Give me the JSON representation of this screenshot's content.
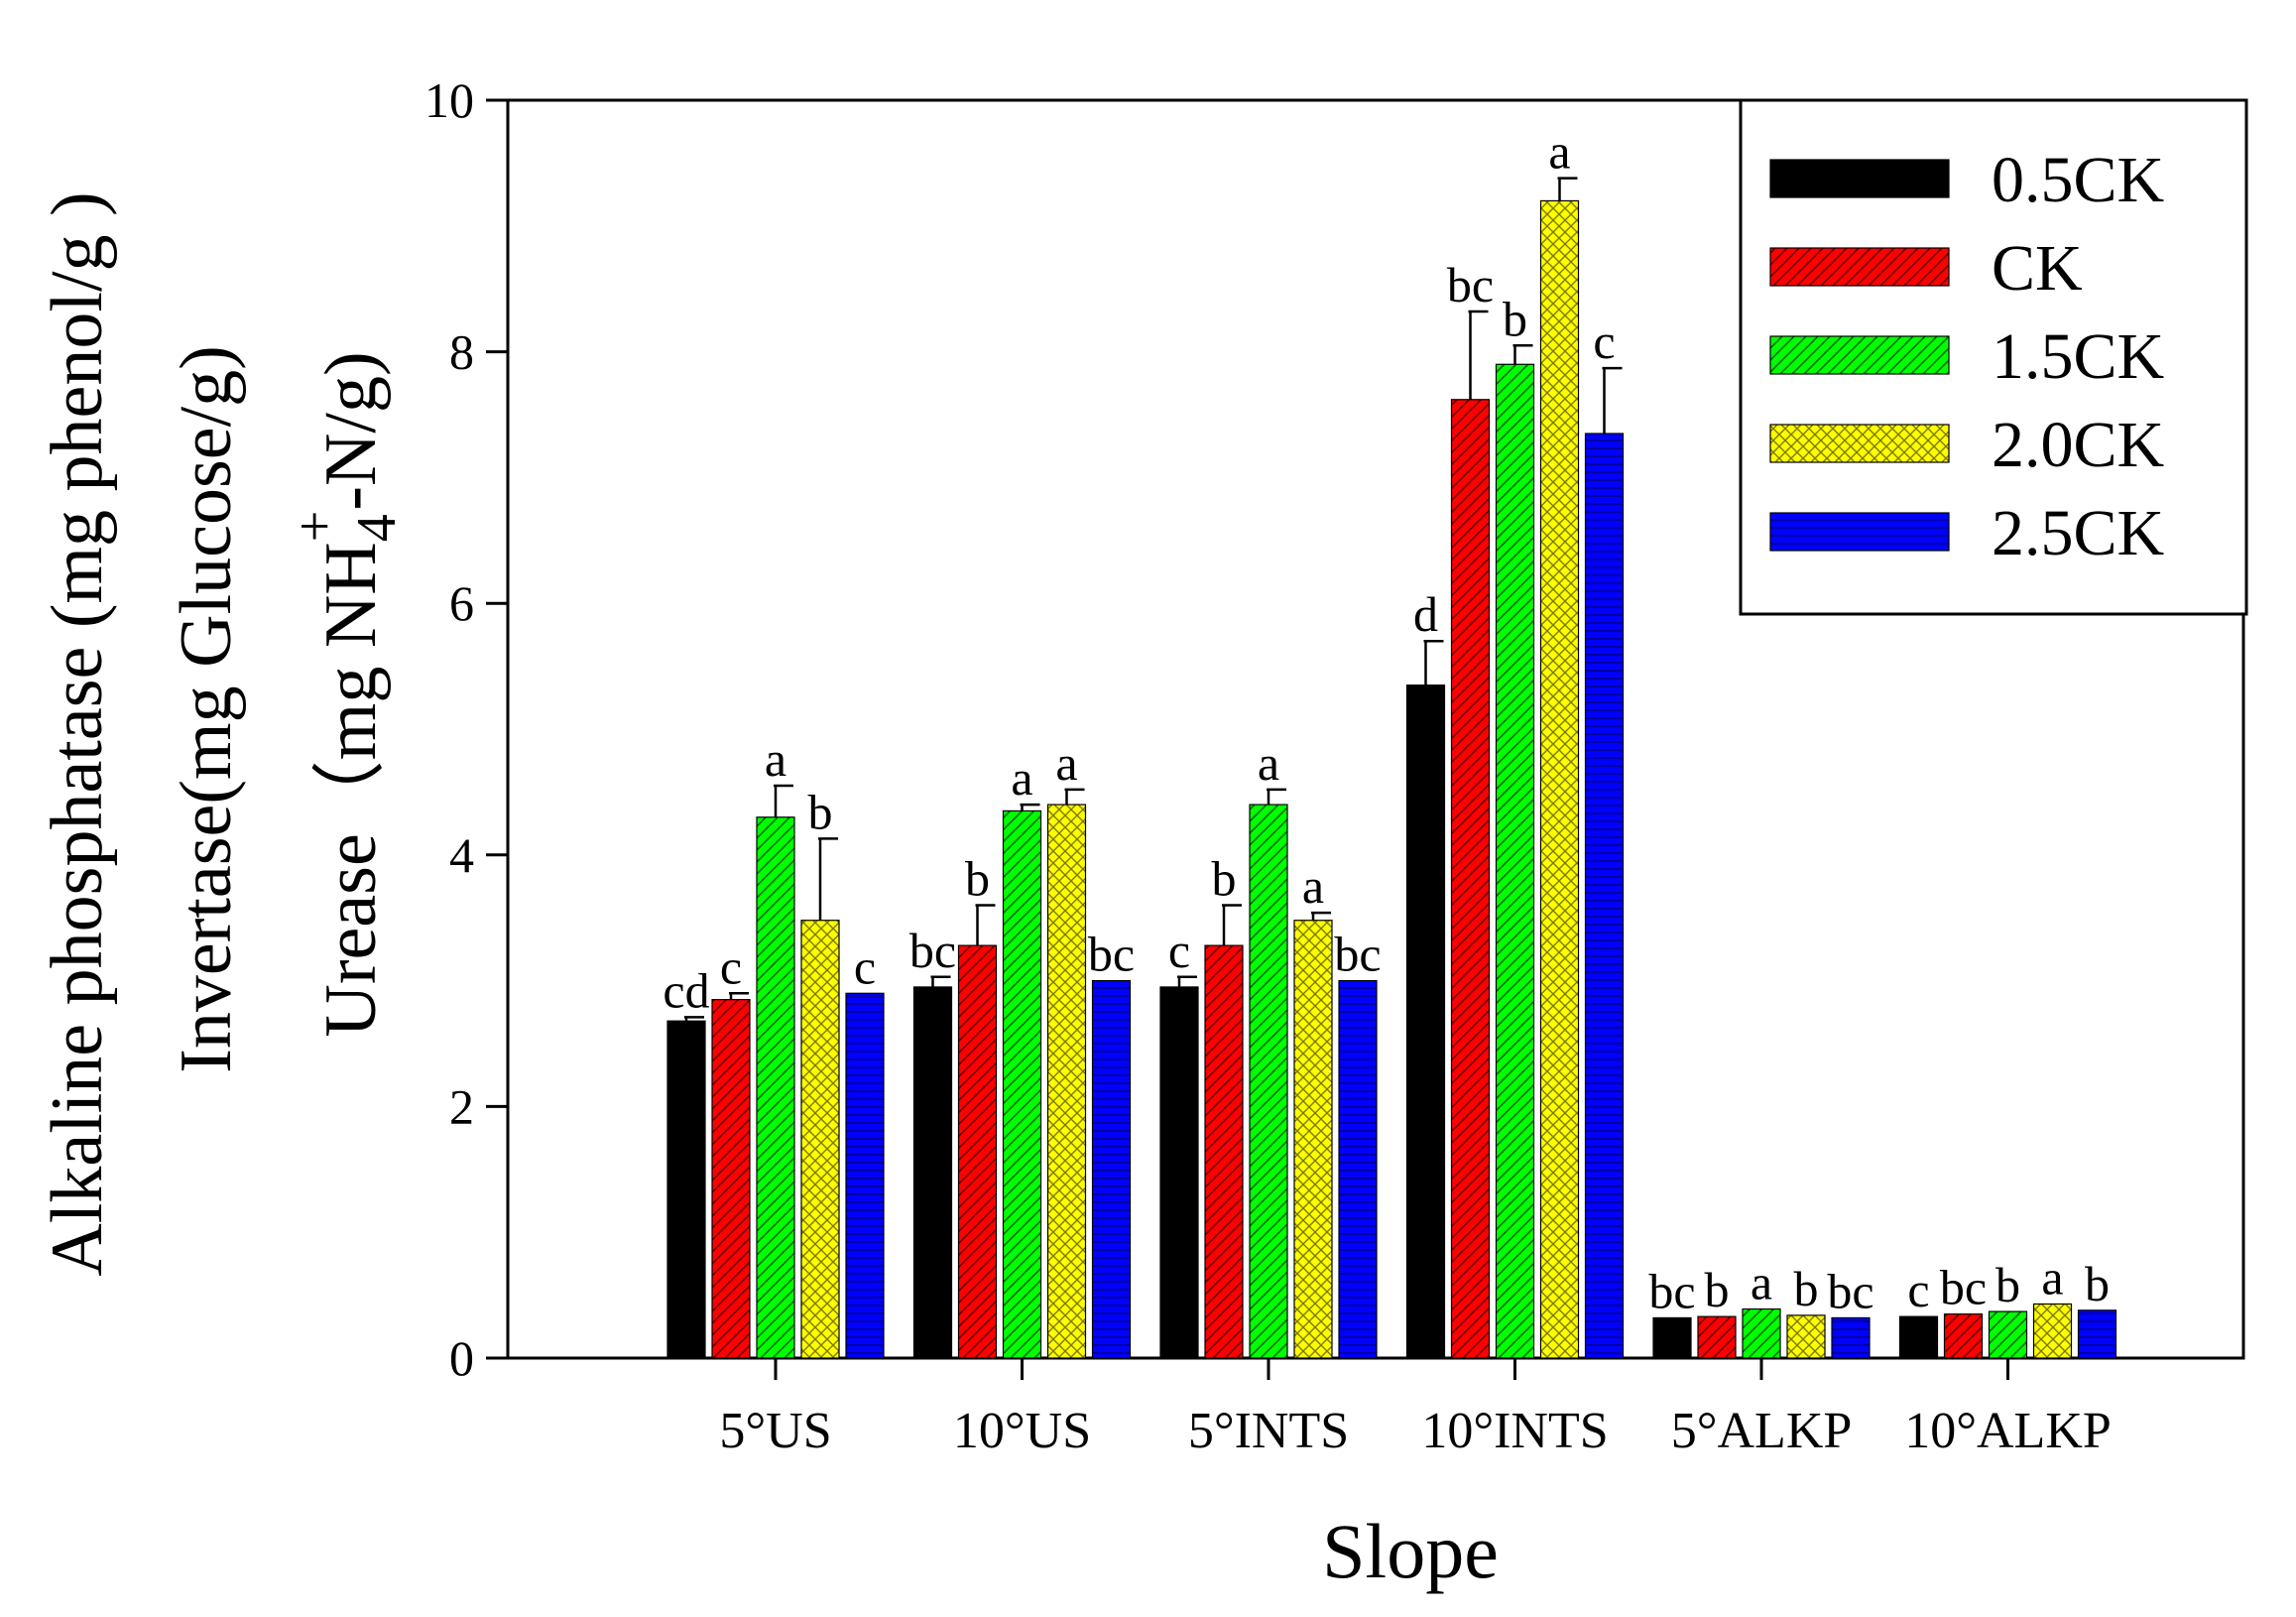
{
  "chart_data": {
    "type": "bar",
    "title": "",
    "xlabel": "Slope",
    "ylabel_lines": [
      "Alkaline phosphatase (mg phenol/g )",
      "Invertase(mg Glucose/g)",
      "Urease（mg NH4+-N/g)"
    ],
    "ylabel_parts": {
      "urease_prefix": "Urease（mg NH",
      "urease_sub": "4",
      "urease_sup": "+",
      "urease_suffix": "-N/g)"
    },
    "ylim": [
      0,
      10
    ],
    "yticks": [
      0,
      2,
      4,
      6,
      8,
      10
    ],
    "categories": [
      "5°US",
      "10°US",
      "5°INTS",
      "10°INTS",
      "5°ALKP",
      "10°ALKP"
    ],
    "legend_position": "top-right",
    "series": [
      {
        "name": "0.5CK",
        "color": "#000000",
        "pattern": "solid",
        "values": [
          2.68,
          2.95,
          2.95,
          5.35,
          0.32,
          0.33
        ],
        "errors": [
          0.03,
          0.08,
          0.08,
          0.35,
          0.0,
          0.0
        ],
        "labels": [
          "cd",
          "bc",
          "c",
          "d",
          "bc",
          "c"
        ]
      },
      {
        "name": "CK",
        "color": "#ff0000",
        "pattern": "diag",
        "values": [
          2.85,
          3.28,
          3.28,
          7.62,
          0.33,
          0.35
        ],
        "errors": [
          0.05,
          0.32,
          0.32,
          0.7,
          0.0,
          0.0
        ],
        "labels": [
          "c",
          "b",
          "b",
          "bc",
          "b",
          "bc"
        ]
      },
      {
        "name": "1.5CK",
        "color": "#00ff00",
        "pattern": "diag",
        "values": [
          4.3,
          4.35,
          4.4,
          7.9,
          0.39,
          0.37
        ],
        "errors": [
          0.25,
          0.05,
          0.12,
          0.15,
          0.0,
          0.0
        ],
        "labels": [
          "a",
          "a",
          "a",
          "b",
          "a",
          "b"
        ]
      },
      {
        "name": "2.0CK",
        "color": "#ffff00",
        "pattern": "cross",
        "values": [
          3.48,
          4.4,
          3.48,
          9.2,
          0.34,
          0.43
        ],
        "errors": [
          0.65,
          0.12,
          0.06,
          0.18,
          0.0,
          0.0
        ],
        "labels": [
          "b",
          "a",
          "a",
          "a",
          "b",
          "a"
        ]
      },
      {
        "name": "2.5CK",
        "color": "#0000ff",
        "pattern": "horiz",
        "values": [
          2.9,
          3.0,
          3.0,
          7.35,
          0.32,
          0.38
        ],
        "errors": [
          0.0,
          0.0,
          0.0,
          0.52,
          0.0,
          0.0
        ],
        "labels": [
          "c",
          "bc",
          "bc",
          "c",
          "bc",
          "b"
        ]
      }
    ]
  }
}
